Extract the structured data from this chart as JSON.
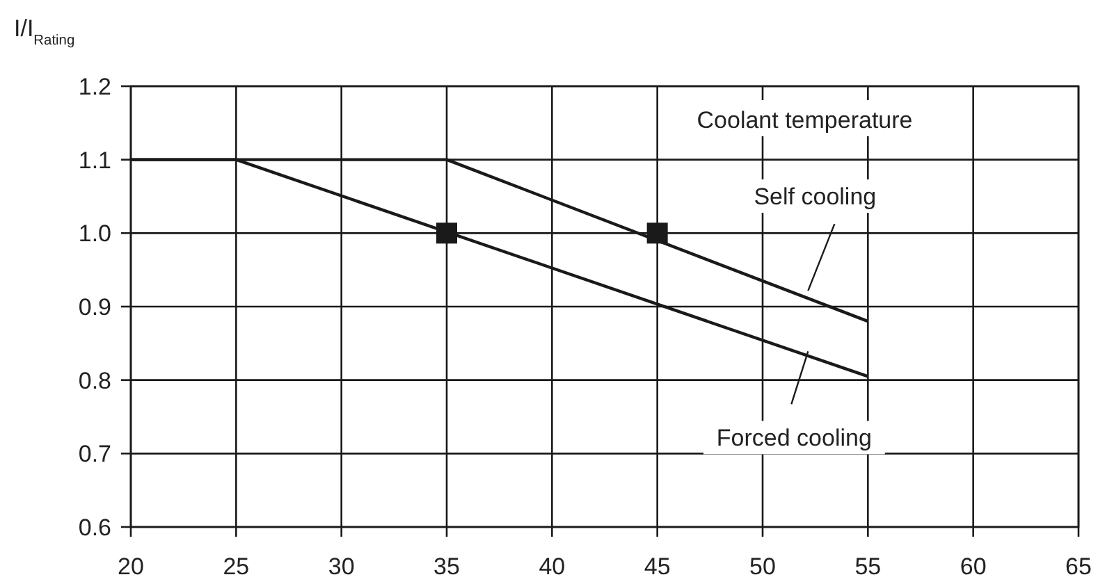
{
  "chart_data": {
    "type": "line",
    "xlabel": "Coolant temperature",
    "ylabel": "I/I$_{Rating}$",
    "xlim": [
      20,
      65
    ],
    "xticks": [
      20,
      25,
      30,
      35,
      40,
      45,
      50,
      55,
      60,
      65
    ],
    "ylim": [
      0.6,
      1.2
    ],
    "yticks": [
      {
        "value": 0.6,
        "label": "0.6"
      },
      {
        "value": 0.7,
        "label": "0.7"
      },
      {
        "value": 0.8,
        "label": "0.8"
      },
      {
        "value": 0.9,
        "label": "0.9"
      },
      {
        "value": 1.0,
        "label": "1.0"
      },
      {
        "value": 1.1,
        "label": "1.1"
      },
      {
        "value": 1.2,
        "label": "1.2"
      }
    ],
    "grid": true,
    "line_style": "solid",
    "series": [
      {
        "name": "Self cooling",
        "color": "#1a1a1a",
        "x": [
          20,
          35,
          55
        ],
        "values": [
          1.1,
          1.1,
          0.88
        ]
      },
      {
        "name": "Forced cooling",
        "color": "#1a1a1a",
        "x": [
          20,
          25,
          55
        ],
        "values": [
          1.1,
          1.1,
          0.805
        ]
      },
      {
        "type": "scatter",
        "marker": "square",
        "color": "#1a1a1a",
        "x": [
          35,
          45
        ],
        "values": [
          1.0,
          1.0
        ]
      }
    ]
  }
}
